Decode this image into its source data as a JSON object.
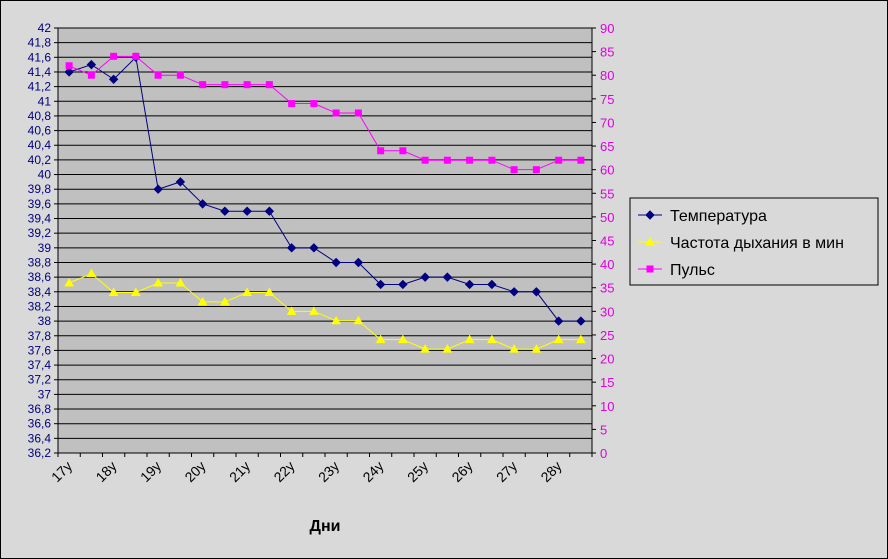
{
  "chart_data": {
    "type": "line",
    "xlabel": "Дни",
    "categories": [
      "17у",
      "",
      "18у",
      "",
      "19у",
      "",
      "20у",
      "",
      "21у",
      "",
      "22у",
      "",
      "23у",
      "",
      "24у",
      "",
      "25у",
      "",
      "26у",
      "",
      "27у",
      "",
      "28у",
      ""
    ],
    "x_tick_labels": [
      "17у",
      "18у",
      "19у",
      "20у",
      "21у",
      "22у",
      "23у",
      "24у",
      "25у",
      "26у",
      "27у",
      "28у"
    ],
    "y_left": {
      "min": 36.2,
      "max": 42,
      "step": 0.2,
      "tick_labels": [
        "36,2",
        "36,4",
        "36,6",
        "36,8",
        "37",
        "37,2",
        "37,4",
        "37,6",
        "37,8",
        "38",
        "38,2",
        "38,4",
        "38,6",
        "38,8",
        "39",
        "39,2",
        "39,4",
        "39,6",
        "39,8",
        "40",
        "40,2",
        "40,4",
        "40,6",
        "40,8",
        "41",
        "41,2",
        "41,4",
        "41,6",
        "41,8",
        "42"
      ]
    },
    "y_right": {
      "min": 0,
      "max": 90,
      "step": 5,
      "tick_labels": [
        "0",
        "5",
        "10",
        "15",
        "20",
        "25",
        "30",
        "35",
        "40",
        "45",
        "50",
        "55",
        "60",
        "65",
        "70",
        "75",
        "80",
        "85",
        "90"
      ]
    },
    "series": [
      {
        "name": "Температура",
        "axis": "left",
        "color": "#000080",
        "marker": "diamond",
        "values": [
          41.4,
          41.5,
          41.3,
          41.6,
          39.8,
          39.9,
          39.6,
          39.5,
          39.5,
          39.5,
          39.0,
          39.0,
          38.8,
          38.8,
          38.5,
          38.5,
          38.6,
          38.6,
          38.5,
          38.5,
          38.4,
          38.4,
          38.0,
          38.0
        ]
      },
      {
        "name": "Частота дыхания в мин",
        "axis": "right",
        "color": "#ffff00",
        "marker": "triangle",
        "values": [
          36,
          38,
          34,
          34,
          36,
          36,
          32,
          32,
          34,
          34,
          30,
          30,
          28,
          28,
          24,
          24,
          22,
          22,
          24,
          24,
          22,
          22,
          24,
          24
        ]
      },
      {
        "name": "Пульс",
        "axis": "right",
        "color": "#ff00ff",
        "marker": "square",
        "values": [
          82,
          80,
          84,
          84,
          80,
          80,
          78,
          78,
          78,
          78,
          74,
          74,
          72,
          72,
          64,
          64,
          62,
          62,
          62,
          62,
          60,
          60,
          62,
          62
        ]
      }
    ],
    "grid": true,
    "legend_position": "right",
    "plot_background": "#c0c0c0"
  }
}
